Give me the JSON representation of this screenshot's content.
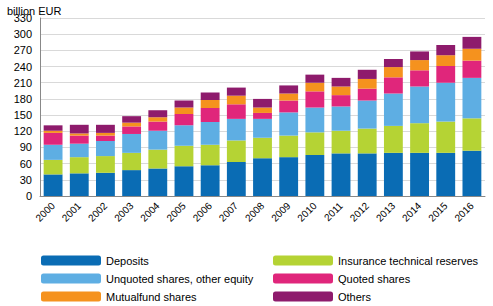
{
  "chart_data": {
    "type": "bar",
    "stacked": true,
    "grid": true,
    "ylabel": "billion EUR",
    "categories": [
      "2000",
      "2001",
      "2002",
      "2003",
      "2004",
      "2005",
      "2006",
      "2007",
      "2008",
      "2009",
      "2010",
      "2011",
      "2012",
      "2013",
      "2014",
      "2015",
      "2016"
    ],
    "ylim": [
      0,
      330
    ],
    "yticks": [
      0,
      30,
      60,
      90,
      120,
      150,
      180,
      210,
      240,
      270,
      300,
      330
    ],
    "series": [
      {
        "name": "Deposits",
        "color": "#0a6cb4",
        "values": [
          40,
          42,
          43,
          48,
          51,
          55,
          57,
          63,
          70,
          72,
          76,
          79,
          79,
          80,
          80,
          80,
          84
        ]
      },
      {
        "name": "Insurance technical reserves",
        "color": "#b5d334",
        "values": [
          27,
          30,
          31,
          32,
          35,
          38,
          38,
          40,
          38,
          40,
          42,
          42,
          46,
          50,
          55,
          58,
          60
        ]
      },
      {
        "name": "Unquoted shares, other equity",
        "color": "#5eaee3",
        "values": [
          28,
          25,
          28,
          35,
          35,
          38,
          42,
          40,
          35,
          43,
          46,
          45,
          52,
          60,
          68,
          72,
          75
        ]
      },
      {
        "name": "Quoted shares",
        "color": "#e0267b",
        "values": [
          22,
          15,
          10,
          14,
          17,
          21,
          26,
          27,
          11,
          22,
          30,
          21,
          22,
          30,
          30,
          31,
          32
        ]
      },
      {
        "name": "Mutualfund shares",
        "color": "#f5921e",
        "values": [
          4,
          4,
          5,
          7,
          8,
          12,
          15,
          16,
          10,
          13,
          16,
          16,
          18,
          19,
          19,
          20,
          22
        ]
      },
      {
        "name": "Others",
        "color": "#8e1b6c",
        "values": [
          10,
          16,
          15,
          12,
          13,
          13,
          14,
          15,
          16,
          15,
          15,
          16,
          17,
          15,
          16,
          19,
          22
        ]
      }
    ]
  }
}
